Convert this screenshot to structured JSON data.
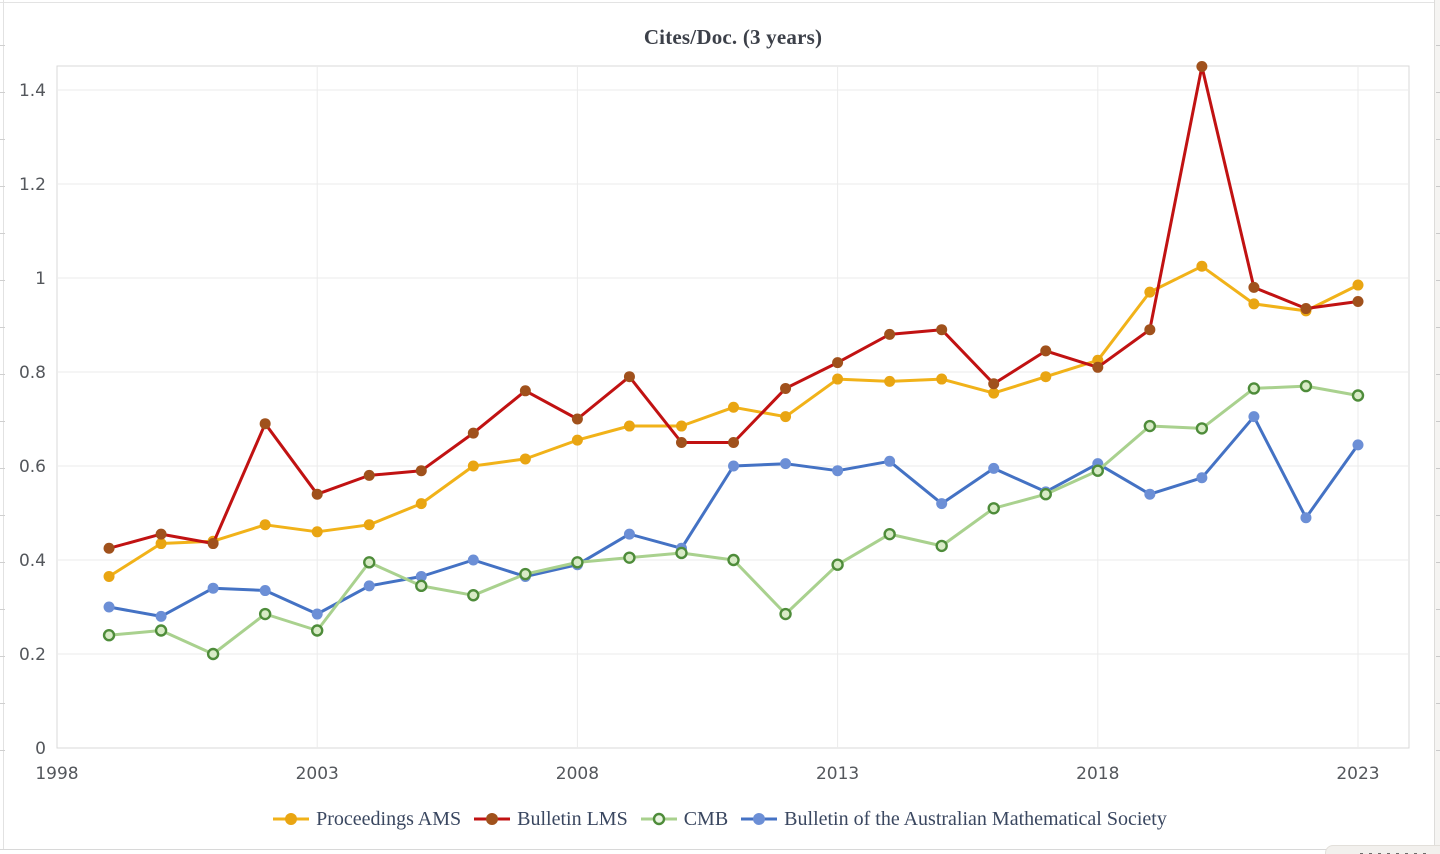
{
  "chart_data": {
    "type": "line",
    "title": "Cites/Doc. (3 years)",
    "xlabel": "",
    "ylabel": "",
    "x": [
      1999,
      2000,
      2001,
      2002,
      2003,
      2004,
      2005,
      2006,
      2007,
      2008,
      2009,
      2010,
      2011,
      2012,
      2013,
      2014,
      2015,
      2016,
      2017,
      2018,
      2019,
      2020,
      2021,
      2022,
      2023
    ],
    "x_tick_labels": [
      "1998",
      "2003",
      "2008",
      "2013",
      "2018",
      "2023"
    ],
    "x_tick_years": [
      1998,
      2003,
      2008,
      2013,
      2018,
      2023
    ],
    "y_tick_labels": [
      "0",
      "0.2",
      "0.4",
      "0.6",
      "0.8",
      "1",
      "1.2",
      "1.4"
    ],
    "y_ticks": [
      0,
      0.2,
      0.4,
      0.6,
      0.8,
      1.0,
      1.2,
      1.4
    ],
    "xlim": [
      1998,
      2024
    ],
    "ylim": [
      0,
      1.46
    ],
    "grid": true,
    "legend_position": "bottom",
    "series": [
      {
        "name": "Proceedings AMS",
        "line_color": "#F1B219",
        "marker_color": "#E9A512",
        "marker_style": "filled-circle",
        "values": [
          0.365,
          0.435,
          0.44,
          0.475,
          0.46,
          0.475,
          0.52,
          0.6,
          0.615,
          0.655,
          0.685,
          0.685,
          0.725,
          0.705,
          0.785,
          0.78,
          0.785,
          0.755,
          0.79,
          0.825,
          0.97,
          1.025,
          0.945,
          0.93,
          0.985
        ]
      },
      {
        "name": "Bulletin LMS",
        "line_color": "#C11212",
        "marker_color": "#A0511C",
        "marker_style": "filled-circle",
        "values": [
          0.425,
          0.455,
          0.435,
          0.69,
          0.54,
          0.58,
          0.59,
          0.67,
          0.76,
          0.7,
          0.79,
          0.65,
          0.65,
          0.765,
          0.82,
          0.88,
          0.89,
          0.775,
          0.845,
          0.81,
          0.89,
          1.45,
          0.98,
          0.935,
          0.95
        ]
      },
      {
        "name": "CMB",
        "line_color": "#A9D18E",
        "marker_color": "#D8EBC6",
        "marker_border": "#4E8C3A",
        "marker_style": "open-circle",
        "values": [
          0.24,
          0.25,
          0.2,
          0.285,
          0.25,
          0.395,
          0.345,
          0.325,
          0.37,
          0.395,
          0.405,
          0.415,
          0.4,
          0.285,
          0.39,
          0.455,
          0.43,
          0.51,
          0.54,
          0.59,
          0.685,
          0.68,
          0.765,
          0.77,
          0.75
        ]
      },
      {
        "name": "Bulletin of the Australian Mathematical Society",
        "line_color": "#4472C4",
        "marker_color": "#6C8FD6",
        "marker_style": "filled-circle",
        "values": [
          0.3,
          0.28,
          0.34,
          0.335,
          0.285,
          0.345,
          0.365,
          0.4,
          0.365,
          0.39,
          0.455,
          0.425,
          0.6,
          0.605,
          0.59,
          0.61,
          0.52,
          0.595,
          0.545,
          0.605,
          0.54,
          0.575,
          0.705,
          0.49,
          0.645
        ]
      }
    ],
    "axis_label_color": "#54575C",
    "gridline_color": "#EBEBEB",
    "plot_border_color": "#D9D9D9"
  }
}
